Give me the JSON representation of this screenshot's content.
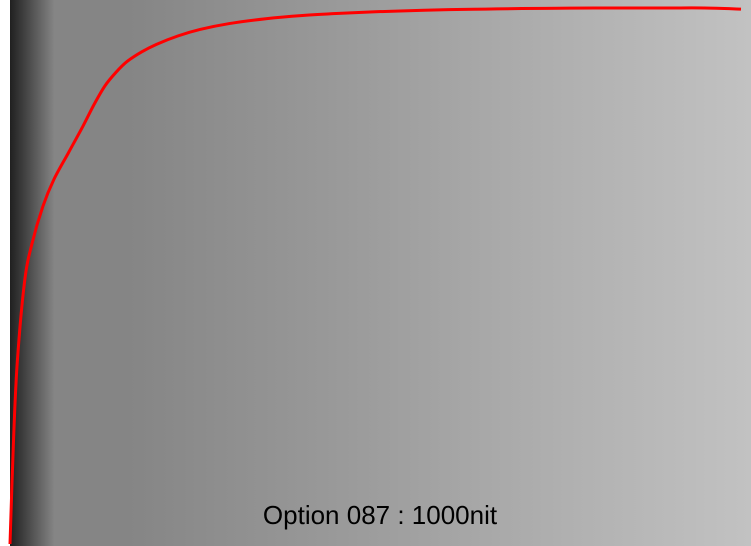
{
  "colors": {
    "curve": "#ff0000",
    "gradient_dark": "#202020",
    "gradient_mid": "#858585",
    "gradient_light": "#c2c2c2"
  },
  "chart_data": {
    "type": "line",
    "title": "",
    "xlabel": "",
    "ylabel": "",
    "grid": false,
    "legend": "none",
    "xlim": [
      0,
      1
    ],
    "ylim": [
      0,
      1
    ],
    "annotation": "Option 087 : 1000nit",
    "series": [
      {
        "color": "#ff0000",
        "x": [
          0.0,
          0.005,
          0.01,
          0.02,
          0.03,
          0.045,
          0.06,
          0.08,
          0.1,
          0.115,
          0.13,
          0.145,
          0.16,
          0.18,
          0.2,
          0.23,
          0.26,
          0.3,
          0.35,
          0.4,
          0.45,
          0.5,
          0.55,
          0.6,
          0.65,
          0.7,
          0.75,
          0.8,
          0.85,
          0.9,
          0.95,
          1.0
        ],
        "y": [
          0.0,
          0.2,
          0.34,
          0.49,
          0.56,
          0.63,
          0.68,
          0.73,
          0.78,
          0.82,
          0.855,
          0.88,
          0.9,
          0.918,
          0.932,
          0.948,
          0.96,
          0.971,
          0.98,
          0.986,
          0.99,
          0.993,
          0.995,
          0.997,
          0.998,
          0.999,
          0.9995,
          1.0,
          1.0,
          1.0,
          1.0,
          0.998
        ]
      }
    ]
  }
}
